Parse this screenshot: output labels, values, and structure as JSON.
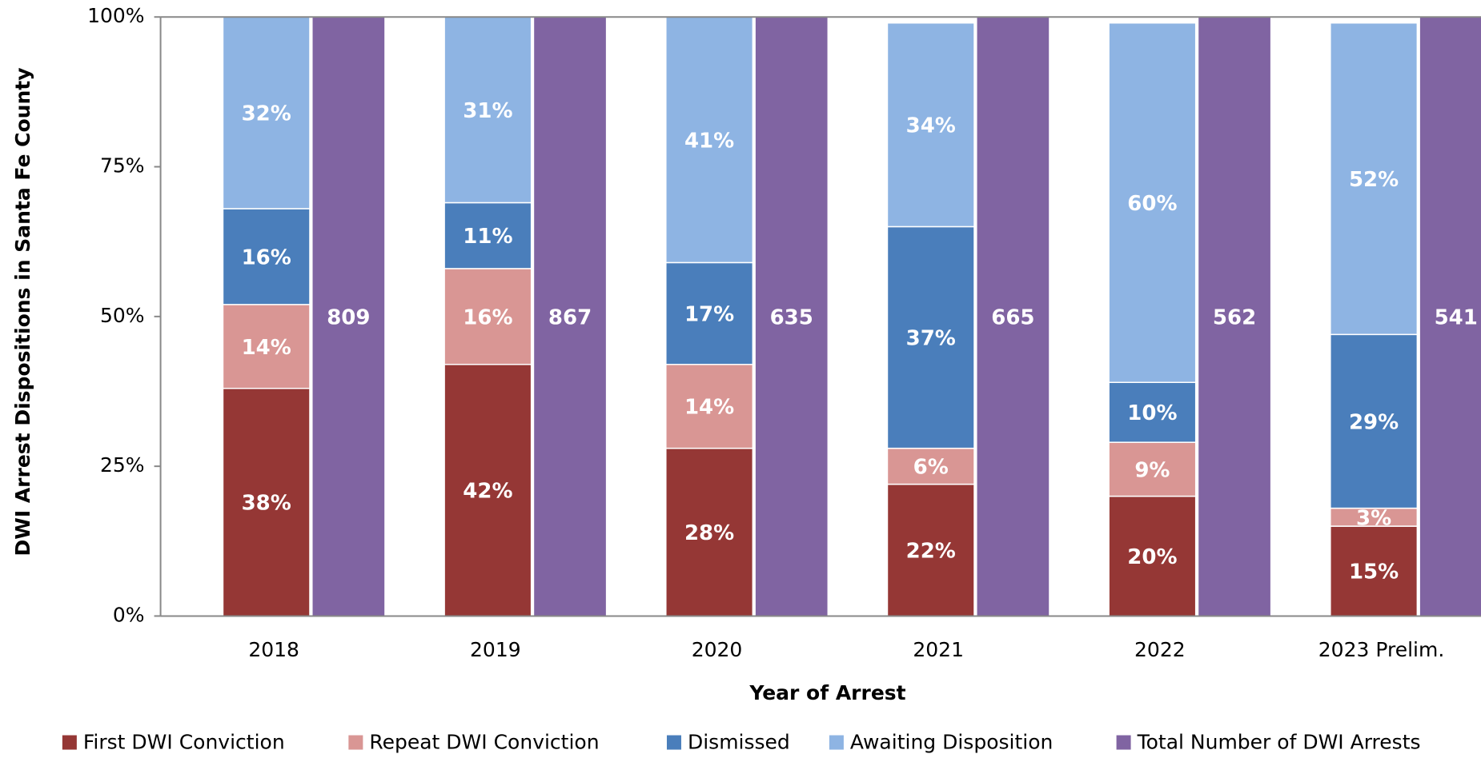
{
  "chart_data": {
    "type": "stacked_bar",
    "ylabel": "DWI Arrest Dispositions in Santa Fe County",
    "xlabel": "Year of Arrest",
    "categories": [
      "2018",
      "2019",
      "2020",
      "2021",
      "2022",
      "2023 Prelim."
    ],
    "ylim": [
      0,
      100
    ],
    "yticks": [
      {
        "value": 0,
        "label": "0%"
      },
      {
        "value": 25,
        "label": "25%"
      },
      {
        "value": 50,
        "label": "50%"
      },
      {
        "value": 75,
        "label": "75%"
      },
      {
        "value": 100,
        "label": "100%"
      }
    ],
    "series": [
      {
        "name": "First DWI Conviction",
        "color": "#953735",
        "values": [
          38,
          42,
          28,
          22,
          20,
          15
        ],
        "value_labels": [
          "38%",
          "42%",
          "28%",
          "22%",
          "20%",
          "15%"
        ]
      },
      {
        "name": "Repeat DWI Conviction",
        "color": "#d99694",
        "values": [
          14,
          16,
          14,
          6,
          9,
          3
        ],
        "value_labels": [
          "14%",
          "16%",
          "14%",
          "6%",
          "9%",
          "3%"
        ]
      },
      {
        "name": "Dismissed",
        "color": "#4a7ebb",
        "values": [
          16,
          11,
          17,
          37,
          10,
          29
        ],
        "value_labels": [
          "16%",
          "11%",
          "17%",
          "37%",
          "10%",
          "29%"
        ]
      },
      {
        "name": "Awaiting Disposition",
        "color": "#8eb4e3",
        "values": [
          32,
          31,
          41,
          34,
          60,
          52
        ],
        "value_labels": [
          "32%",
          "31%",
          "41%",
          "34%",
          "60%",
          "52%"
        ]
      }
    ],
    "totals": {
      "name": "Total Number of DWI Arrests",
      "color": "#8064a2",
      "values": [
        809,
        867,
        635,
        665,
        562,
        541
      ]
    },
    "legend": "bottom"
  }
}
